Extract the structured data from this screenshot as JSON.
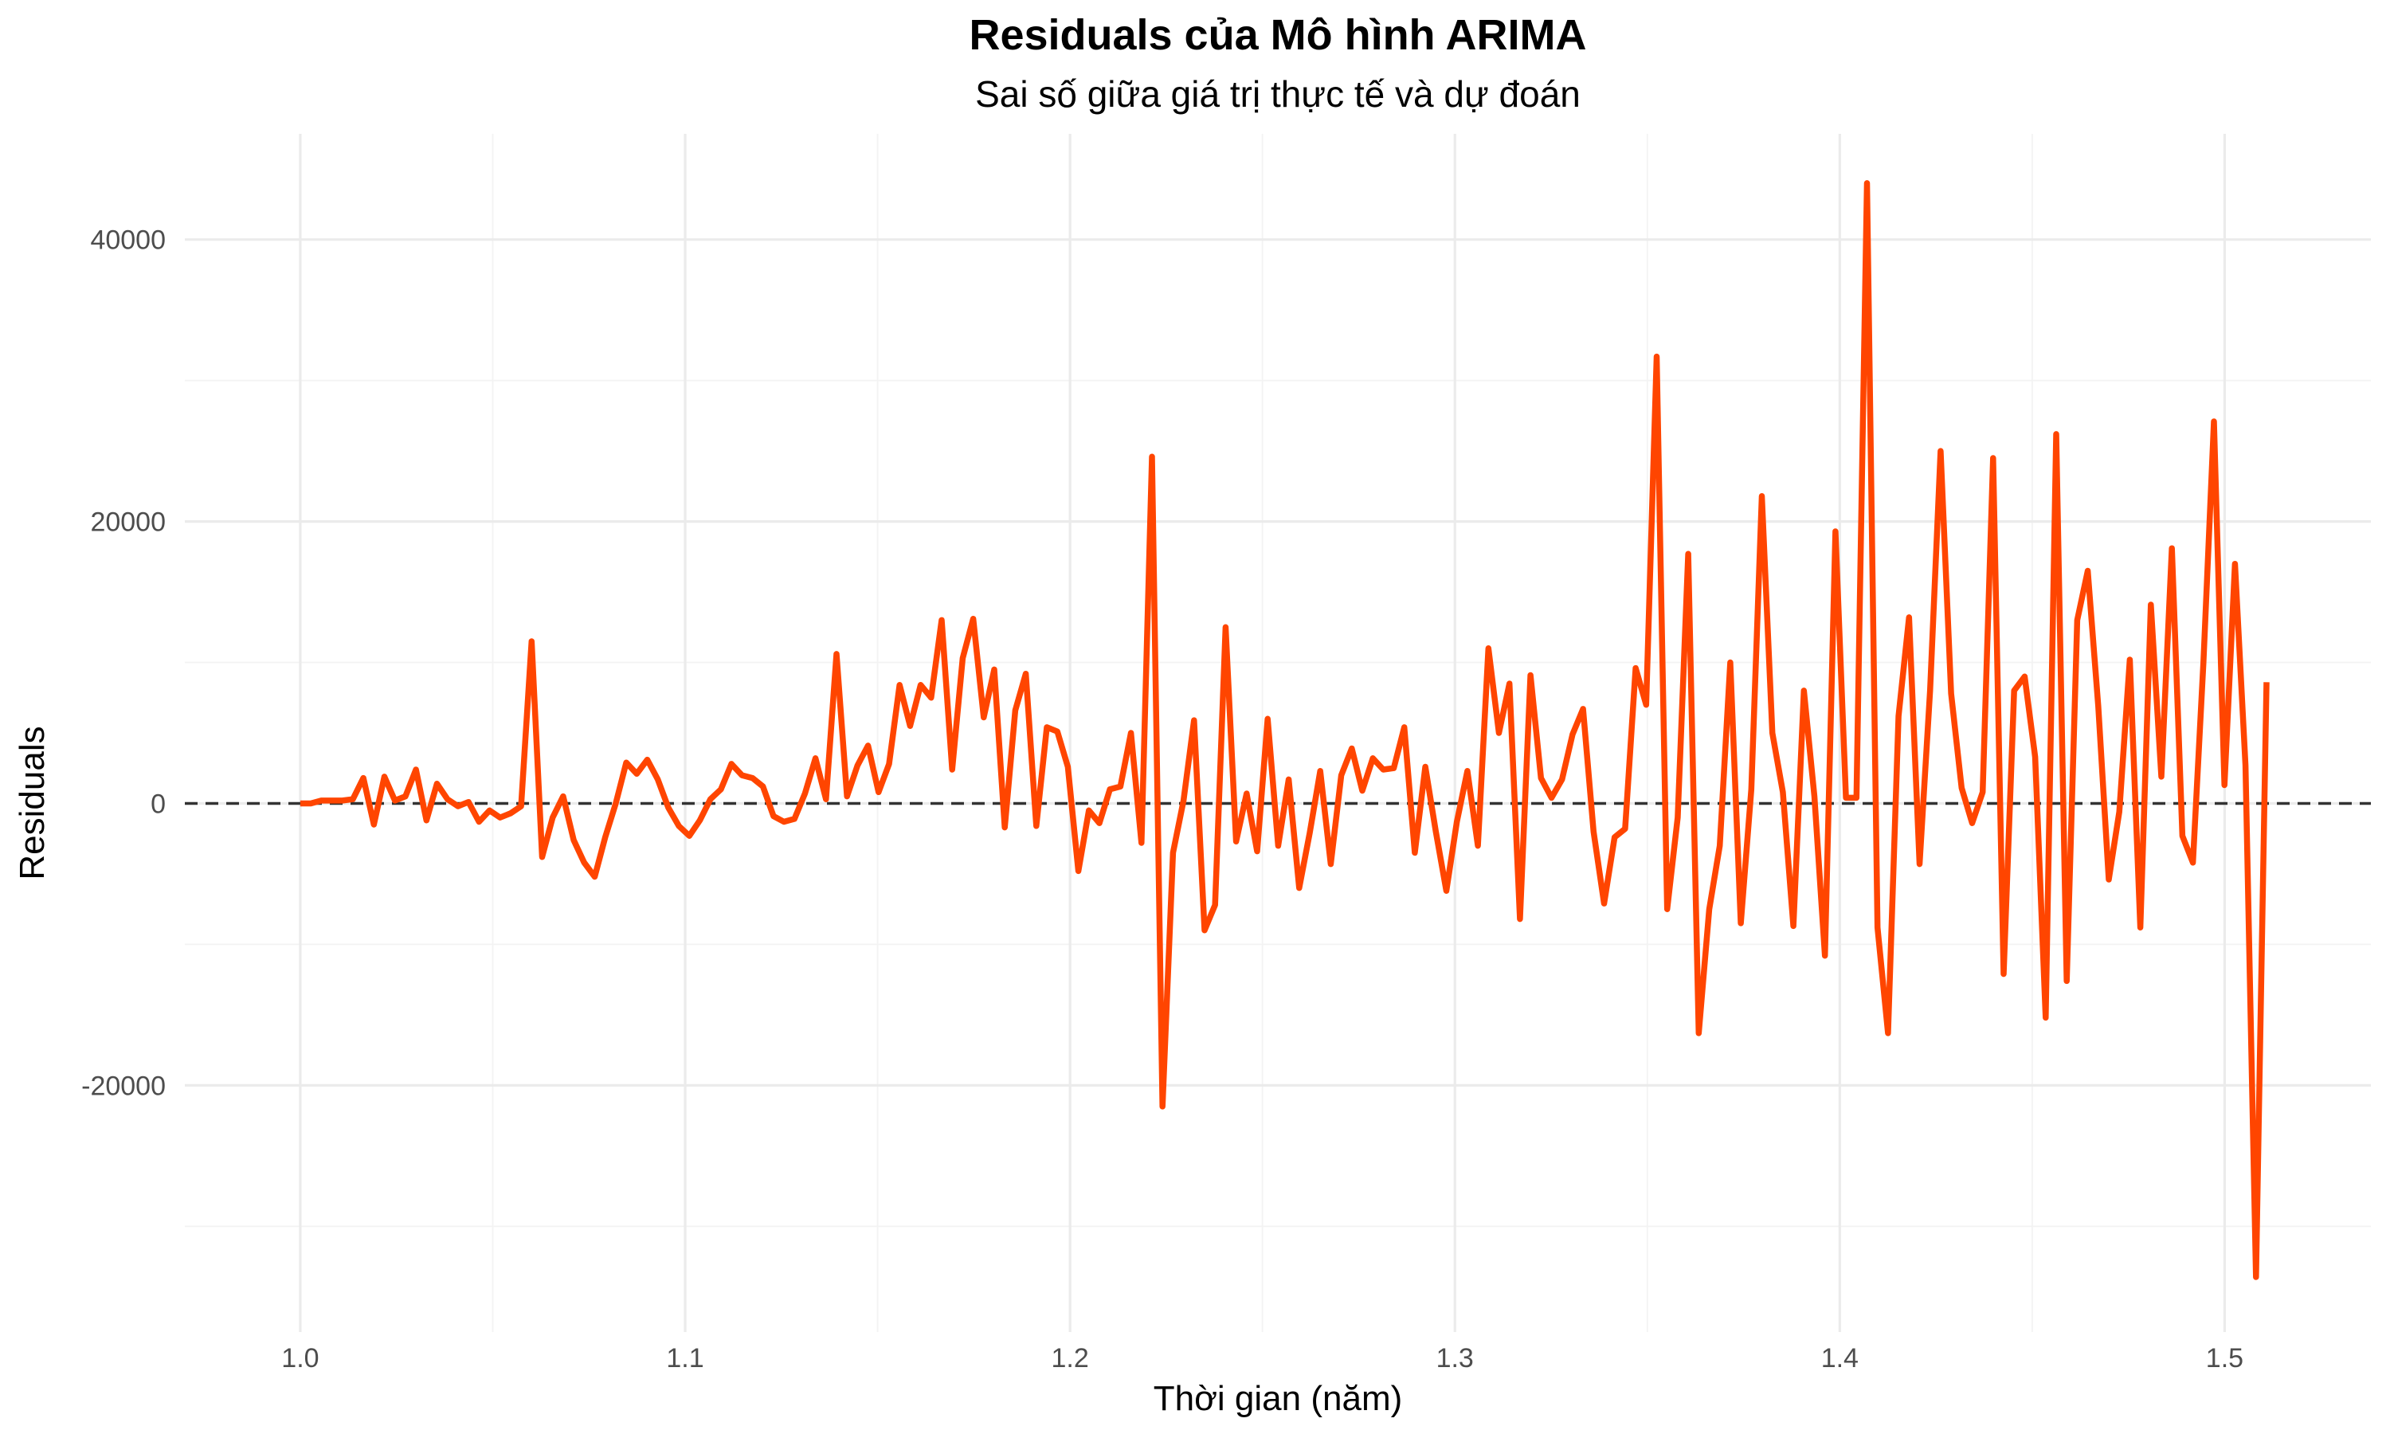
{
  "chart_data": {
    "type": "line",
    "title": "Residuals của Mô hình ARIMA",
    "subtitle": "Sai số giữa giá trị thực tế và dự đoán",
    "xlabel": "Thời gian (năm)",
    "ylabel": "Residuals",
    "xlim": [
      0.97,
      1.538
    ],
    "ylim": [
      -37500,
      47500
    ],
    "x_ticks": [
      1.0,
      1.1,
      1.2,
      1.3,
      1.4,
      1.5
    ],
    "x_tick_labels": [
      "1.0",
      "1.1",
      "1.2",
      "1.3",
      "1.4",
      "1.5"
    ],
    "y_ticks": [
      -20000,
      0,
      20000,
      40000
    ],
    "y_tick_labels": [
      "-20000",
      "0",
      "20000",
      "40000"
    ],
    "reference_line": {
      "y": 0,
      "style": "dashed",
      "color": "#333333"
    },
    "grid": true,
    "line_color": "#FF4500",
    "series": [
      {
        "x_start": 1.0,
        "x_step": 0.002732,
        "values": [
          0,
          0,
          200,
          200,
          200,
          300,
          1800,
          -1500,
          1900,
          200,
          500,
          2400,
          -1200,
          1400,
          300,
          -200,
          100,
          -1300,
          -500,
          -1000,
          -700,
          -200,
          11500,
          -3800,
          -1000,
          500,
          -2600,
          -4200,
          -5200,
          -2400,
          0,
          2900,
          2100,
          3100,
          1700,
          -300,
          -1600,
          -2300,
          -1200,
          300,
          1000,
          2800,
          2000,
          1800,
          1200,
          -900,
          -1300,
          -1100,
          700,
          3200,
          300,
          10600,
          500,
          2700,
          4100,
          800,
          2800,
          8400,
          5500,
          8400,
          7500,
          13000,
          2400,
          10300,
          13100,
          6100,
          9500,
          -1700,
          6600,
          9200,
          -1600,
          5400,
          5100,
          2600,
          -4800,
          -500,
          -1400,
          1000,
          1200,
          5000,
          -2800,
          24600,
          -21500,
          -3500,
          200,
          5900,
          -9000,
          -7200,
          12500,
          -2700,
          700,
          -3400,
          6000,
          -3000,
          1700,
          -6000,
          -2100,
          2300,
          -4300,
          2000,
          3900,
          900,
          3200,
          2400,
          2500,
          5400,
          -3500,
          2600,
          -2000,
          -6200,
          -1300,
          2300,
          -3000,
          11000,
          5000,
          8500,
          -8200,
          9100,
          1800,
          400,
          1700,
          4900,
          6700,
          -2000,
          -7100,
          -2400,
          -1800,
          9600,
          7000,
          31700,
          -7500,
          -1000,
          17700,
          -16300,
          -7500,
          -3000,
          10000,
          -8500,
          1000,
          21800,
          5000,
          800,
          -8700,
          8000,
          500,
          -10800,
          19300,
          400,
          400,
          44000,
          -8800,
          -16300,
          6200,
          13200,
          -4300,
          8000,
          25000,
          7800,
          1100,
          -1400,
          800,
          24500,
          -12100,
          8000,
          9000,
          3300,
          -15200,
          26200,
          -12600,
          13000,
          16500,
          6900,
          -5400,
          -600,
          10200,
          -8800,
          14100,
          1900,
          18100,
          -2300,
          -4200,
          10000,
          27100,
          1300,
          17000,
          2700,
          -33600,
          8600
        ]
      }
    ]
  }
}
